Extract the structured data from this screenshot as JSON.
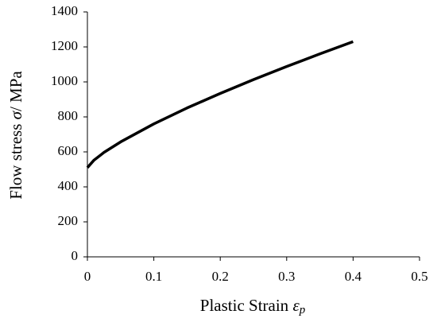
{
  "chart_data": {
    "type": "line",
    "x_label": "Plastic Strain",
    "x_label_symbol": "ε",
    "x_label_subscript": "p",
    "y_label": "Flow stress",
    "y_label_symbol": "σ",
    "y_label_unit": "/ MPa",
    "x": [
      0,
      0.01,
      0.025,
      0.05,
      0.1,
      0.15,
      0.2,
      0.25,
      0.3,
      0.35,
      0.4
    ],
    "series": [
      {
        "name": "Flow stress",
        "color": "#000000",
        "values": [
          510,
          553,
          597,
          657,
          760,
          851,
          934,
          1013,
          1088,
          1160,
          1230
        ]
      }
    ],
    "xlim": [
      0,
      0.5
    ],
    "xticks": [
      0,
      0.1,
      0.2,
      0.3,
      0.4,
      0.5
    ],
    "ylim": [
      0,
      1400
    ],
    "yticks": [
      0,
      200,
      400,
      600,
      800,
      1000,
      1200,
      1400
    ],
    "grid": false
  }
}
